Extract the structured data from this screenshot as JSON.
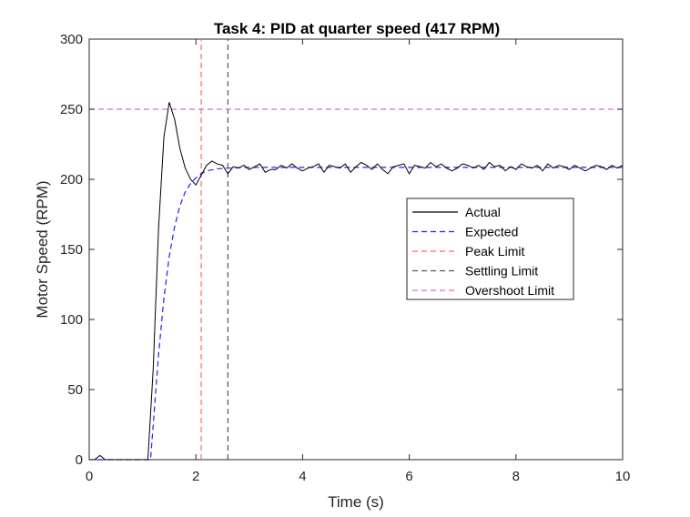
{
  "chart_data": {
    "type": "line",
    "title": "Task 4: PID at quarter speed (417 RPM)",
    "xlabel": "Time (s)",
    "ylabel": "Motor Speed (RPM)",
    "xlim": [
      0,
      10
    ],
    "ylim": [
      0,
      300
    ],
    "xticks": [
      0,
      2,
      4,
      6,
      8,
      10
    ],
    "yticks": [
      0,
      50,
      100,
      150,
      200,
      250,
      300
    ],
    "xtick_labels": [
      "0",
      "2",
      "4",
      "6",
      "8",
      "10"
    ],
    "ytick_labels": [
      "0",
      "50",
      "100",
      "150",
      "200",
      "250",
      "300"
    ],
    "grid": false,
    "legend_position": "right, middle",
    "series": [
      {
        "name": "Actual",
        "color": "#000000",
        "style": "solid",
        "x": [
          0,
          0.1,
          0.2,
          0.3,
          0.4,
          0.5,
          0.6,
          0.7,
          0.8,
          0.9,
          1.0,
          1.1,
          1.2,
          1.3,
          1.4,
          1.5,
          1.6,
          1.7,
          1.8,
          1.9,
          2.0,
          2.1,
          2.2,
          2.3,
          2.4,
          2.5,
          2.6,
          2.7,
          2.8,
          2.9,
          3.0,
          3.1,
          3.2,
          3.3,
          3.4,
          3.5,
          3.6,
          3.7,
          3.8,
          3.9,
          4.0,
          4.1,
          4.2,
          4.3,
          4.4,
          4.5,
          4.6,
          4.7,
          4.8,
          4.9,
          5.0,
          5.1,
          5.2,
          5.3,
          5.4,
          5.5,
          5.6,
          5.7,
          5.8,
          5.9,
          6.0,
          6.1,
          6.2,
          6.3,
          6.4,
          6.5,
          6.6,
          6.7,
          6.8,
          6.9,
          7.0,
          7.1,
          7.2,
          7.3,
          7.4,
          7.5,
          7.6,
          7.7,
          7.8,
          7.9,
          8.0,
          8.1,
          8.2,
          8.3,
          8.4,
          8.5,
          8.6,
          8.7,
          8.8,
          8.9,
          9.0,
          9.1,
          9.2,
          9.3,
          9.4,
          9.5,
          9.6,
          9.7,
          9.8,
          9.9,
          10.0
        ],
        "y": [
          0,
          0,
          3,
          0,
          0,
          0,
          0,
          0,
          0,
          0,
          0,
          0,
          65,
          165,
          230,
          255,
          243,
          222,
          208,
          200,
          196,
          203,
          210,
          213,
          211,
          210,
          204,
          209,
          208,
          210,
          207,
          209,
          211,
          205,
          207,
          207,
          210,
          208,
          211,
          208,
          206,
          208,
          209,
          211,
          205,
          210,
          209,
          208,
          211,
          205,
          209,
          212,
          210,
          207,
          211,
          207,
          204,
          209,
          210,
          211,
          204,
          210,
          209,
          208,
          212,
          209,
          211,
          208,
          206,
          208,
          211,
          210,
          208,
          210,
          207,
          212,
          209,
          210,
          206,
          209,
          207,
          211,
          209,
          208,
          210,
          206,
          211,
          208,
          210,
          209,
          207,
          210,
          208,
          206,
          208,
          210,
          209,
          207,
          210,
          208,
          210
        ]
      },
      {
        "name": "Expected",
        "color": "#1f1fff",
        "style": "dashed",
        "x": [
          0,
          1.15,
          1.2,
          1.3,
          1.4,
          1.5,
          1.6,
          1.7,
          1.8,
          1.9,
          2.0,
          2.1,
          2.2,
          2.4,
          2.6,
          2.8,
          3.0,
          3.5,
          4.0,
          5.0,
          6.0,
          7.0,
          8.0,
          9.0,
          10.0
        ],
        "y": [
          0,
          0,
          25,
          75,
          115,
          145,
          166,
          181,
          191,
          197,
          201,
          204,
          206,
          207.5,
          208,
          208.3,
          208.5,
          208.5,
          208.5,
          208.5,
          208.5,
          208.5,
          208.5,
          208.5,
          208.5
        ]
      },
      {
        "name": "Peak Limit",
        "color": "#ff6666",
        "style": "dashed",
        "x": [
          2.1,
          2.1
        ],
        "y": [
          0,
          300
        ]
      },
      {
        "name": "Settling Limit",
        "color": "#555555",
        "style": "dashed",
        "x": [
          2.6,
          2.6
        ],
        "y": [
          0,
          300
        ]
      },
      {
        "name": "Overshoot Limit",
        "color": "#d46fd4",
        "style": "dashed",
        "x": [
          0,
          10
        ],
        "y": [
          250,
          250
        ]
      }
    ]
  }
}
